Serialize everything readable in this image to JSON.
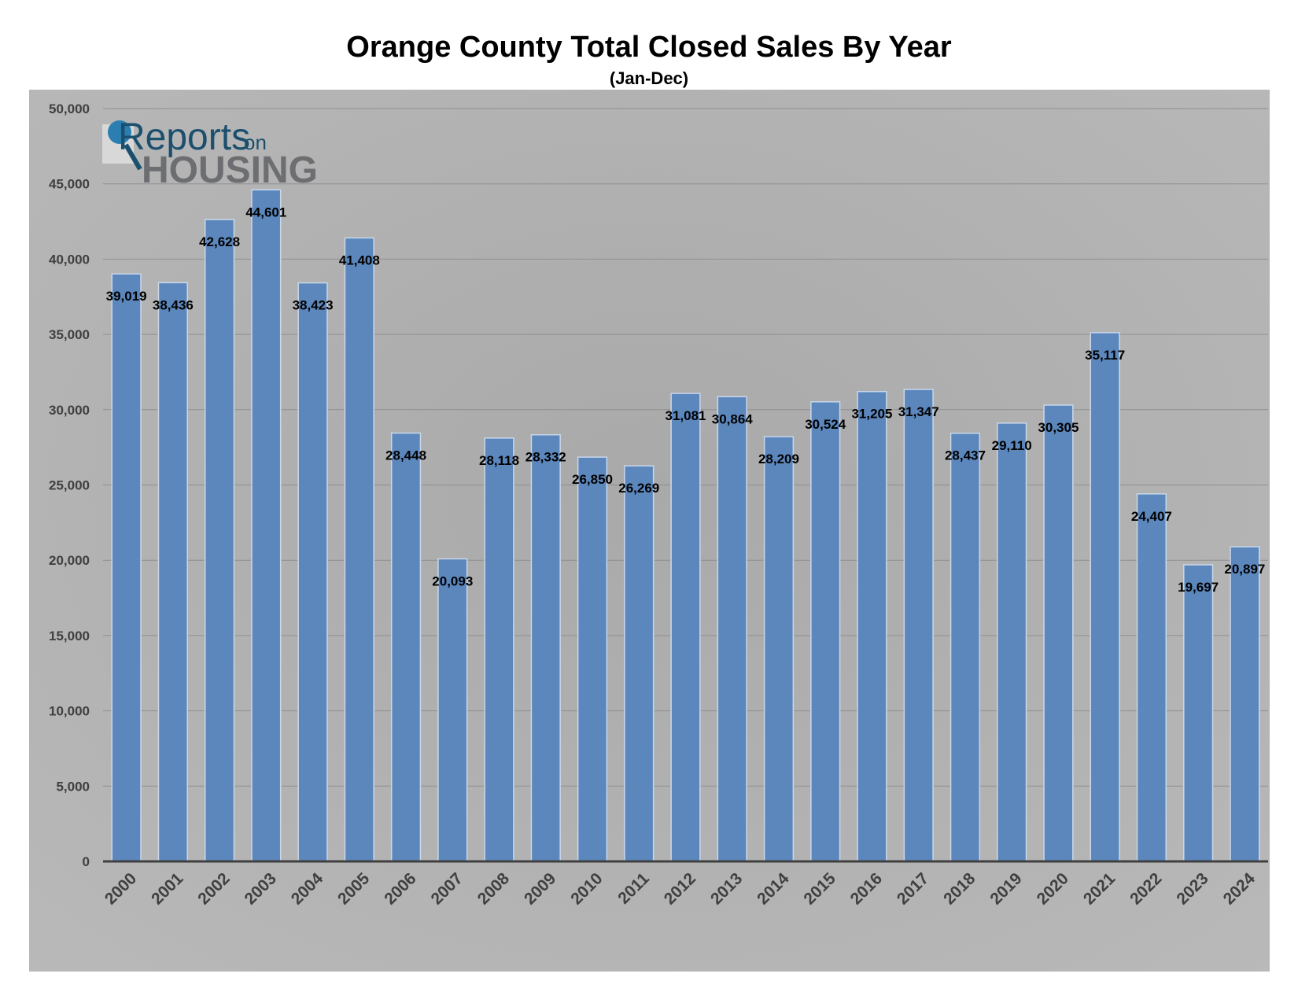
{
  "chart_data": {
    "type": "bar",
    "title": "Orange County Total Closed Sales By Year",
    "subtitle": "(Jan-Dec)",
    "xlabel": "",
    "ylabel": "",
    "ylim": [
      0,
      50000
    ],
    "yticks": [
      0,
      5000,
      10000,
      15000,
      20000,
      25000,
      30000,
      35000,
      40000,
      45000,
      50000
    ],
    "ytick_labels": [
      "0",
      "5,000",
      "10,000",
      "15,000",
      "20,000",
      "25,000",
      "30,000",
      "35,000",
      "40,000",
      "45,000",
      "50,000"
    ],
    "grid": true,
    "categories": [
      "2000",
      "2001",
      "2002",
      "2003",
      "2004",
      "2005",
      "2006",
      "2007",
      "2008",
      "2009",
      "2010",
      "2011",
      "2012",
      "2013",
      "2014",
      "2015",
      "2016",
      "2017",
      "2018",
      "2019",
      "2020",
      "2021",
      "2022",
      "2023",
      "2024"
    ],
    "values": [
      39019,
      38436,
      42628,
      44601,
      38423,
      41408,
      28448,
      20093,
      28118,
      28332,
      26850,
      26269,
      31081,
      30864,
      28209,
      30524,
      31205,
      31347,
      28437,
      29110,
      30305,
      35117,
      24407,
      19697,
      20897
    ],
    "data_labels": [
      "39,019",
      "38,436",
      "42,628",
      "44,601",
      "38,423",
      "41,408",
      "28,448",
      "20,093",
      "28,118",
      "28,332",
      "26,850",
      "26,269",
      "31,081",
      "30,864",
      "28,209",
      "30,524",
      "31,205",
      "31,347",
      "28,437",
      "29,110",
      "30,305",
      "35,117",
      "24,407",
      "19,697",
      "20,897"
    ],
    "bar_color": "#5b87bd",
    "background_color": "#b4b4b4"
  },
  "logo": {
    "text_reports": "Reports",
    "text_on": "on",
    "text_housing": "HOUSING",
    "colors": {
      "primary": "#1b4f6e",
      "secondary": "#6d6e71"
    }
  }
}
